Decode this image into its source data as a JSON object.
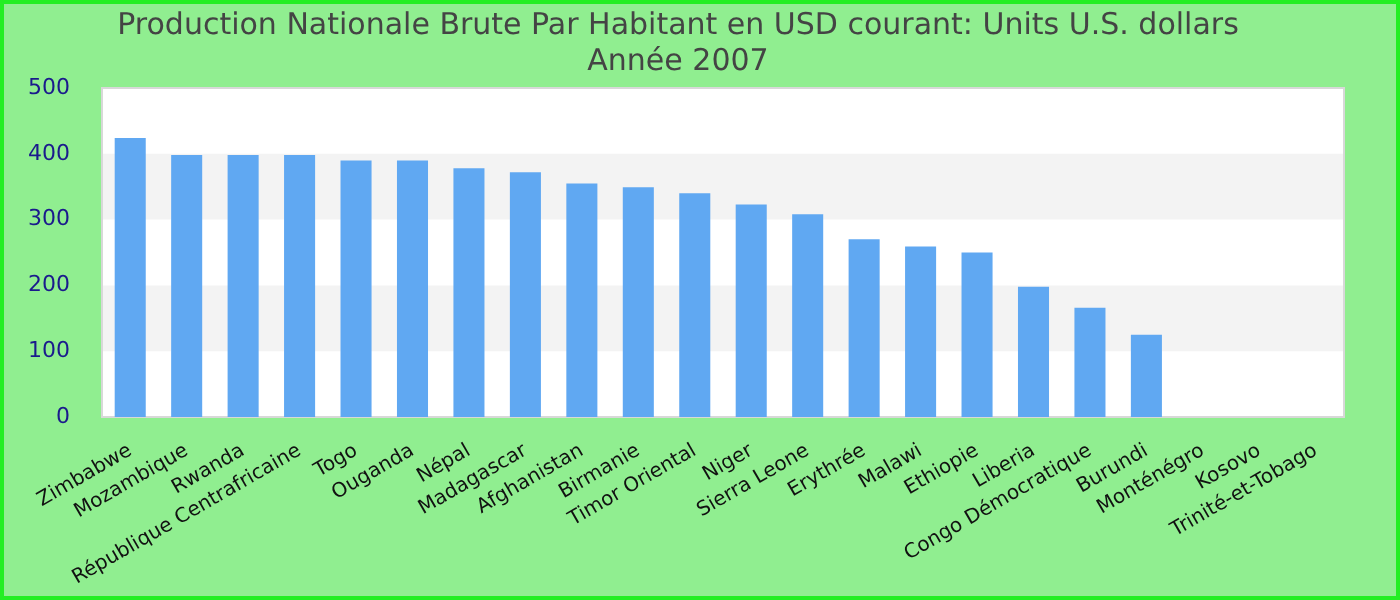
{
  "chart_data": {
    "type": "bar",
    "title": [
      "Production Nationale Brute Par Habitant en USD courant: Units U.S. dollars",
      "Année 2007"
    ],
    "categories": [
      "Zimbabwe",
      "Mozambique",
      "Rwanda",
      "République Centrafricaine",
      "Togo",
      "Ouganda",
      "Népal",
      "Madagascar",
      "Afghanistan",
      "Birmanie",
      "Timor Oriental",
      "Niger",
      "Sierra Leone",
      "Erythrée",
      "Malawi",
      "Ethiopie",
      "Liberia",
      "Congo Démocratique",
      "Burundi",
      "Monténégro",
      "Kosovo",
      "Trinité-et-Tobago"
    ],
    "values": [
      424,
      398,
      398,
      398,
      390,
      390,
      378,
      372,
      355,
      349,
      340,
      323,
      308,
      270,
      259,
      250,
      198,
      166,
      125,
      null,
      null,
      null
    ],
    "color": "#60a8f2",
    "ylim": [
      0,
      500
    ],
    "yticks": [
      0,
      100,
      200,
      300,
      400,
      500
    ]
  }
}
